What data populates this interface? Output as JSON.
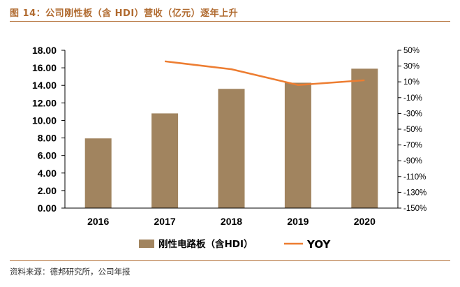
{
  "figure": {
    "title": "图 14：公司刚性板（含 HDI）营收（亿元）逐年上升",
    "source": "资料来源：德邦研究所，公司年报"
  },
  "colors": {
    "bar": "#a1845f",
    "line": "#ed7d31",
    "accent": "#b06a2f"
  },
  "chart_data": {
    "type": "bar",
    "categories": [
      "2016",
      "2017",
      "2018",
      "2019",
      "2020"
    ],
    "series": [
      {
        "name": "刚性电路板（含HDI）",
        "type": "bar",
        "axis": "left",
        "values": [
          7.95,
          10.8,
          13.6,
          14.3,
          15.9
        ]
      },
      {
        "name": "YOY",
        "type": "line",
        "axis": "right",
        "values": [
          null,
          36,
          26,
          6,
          12
        ]
      }
    ],
    "y_left": {
      "lim": [
        0,
        18
      ],
      "ticks": [
        0,
        2,
        4,
        6,
        8,
        10,
        12,
        14,
        16,
        18
      ],
      "tick_labels": [
        "0.00",
        "2.00",
        "4.00",
        "6.00",
        "8.00",
        "10.00",
        "12.00",
        "14.00",
        "16.00",
        "18.00"
      ]
    },
    "y_right": {
      "lim": [
        -150,
        50
      ],
      "ticks": [
        50,
        30,
        10,
        -10,
        -30,
        -50,
        -70,
        -90,
        -110,
        -130,
        -150
      ],
      "tick_labels": [
        "50%",
        "30%",
        "10%",
        "-10%",
        "-30%",
        "-50%",
        "-70%",
        "-90%",
        "-110%",
        "-130%",
        "-150%"
      ]
    },
    "grid": false,
    "legend_position": "bottom"
  }
}
